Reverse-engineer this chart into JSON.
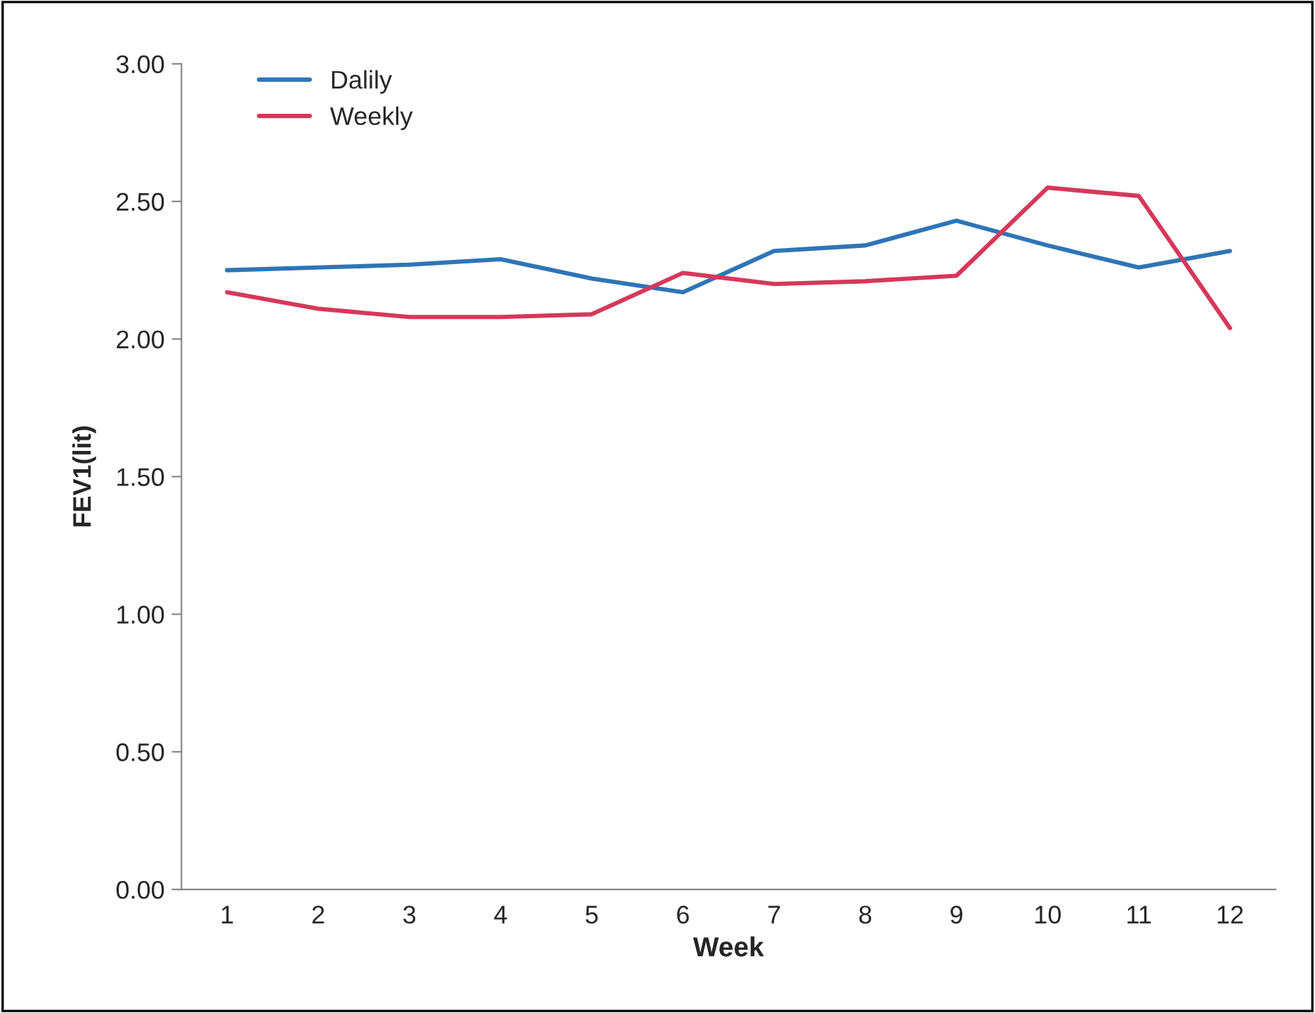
{
  "chart_data": {
    "type": "line",
    "xlabel": "Week",
    "ylabel": "FEV1(lit)",
    "categories": [
      "1",
      "2",
      "3",
      "4",
      "5",
      "6",
      "7",
      "8",
      "9",
      "10",
      "11",
      "12"
    ],
    "series": [
      {
        "name": "Dalily",
        "color": "#2e75b6",
        "values": [
          2.25,
          2.26,
          2.27,
          2.29,
          2.22,
          2.17,
          2.32,
          2.34,
          2.43,
          2.34,
          2.26,
          2.32
        ]
      },
      {
        "name": "Weekly",
        "color": "#d6385a",
        "values": [
          2.17,
          2.11,
          2.08,
          2.08,
          2.09,
          2.24,
          2.2,
          2.21,
          2.23,
          2.55,
          2.52,
          2.04
        ]
      }
    ],
    "ylim": [
      0,
      3
    ],
    "yticks": [
      {
        "value": 0,
        "label": "0.00"
      },
      {
        "value": 0.5,
        "label": "0.50"
      },
      {
        "value": 1,
        "label": "1.00"
      },
      {
        "value": 1.5,
        "label": "1.50"
      },
      {
        "value": 2,
        "label": "2.00"
      },
      {
        "value": 2.5,
        "label": "2.50"
      },
      {
        "value": 3,
        "label": "3.00"
      }
    ],
    "grid": false,
    "legend": "top left",
    "marker": "none",
    "line_style": "solid"
  }
}
